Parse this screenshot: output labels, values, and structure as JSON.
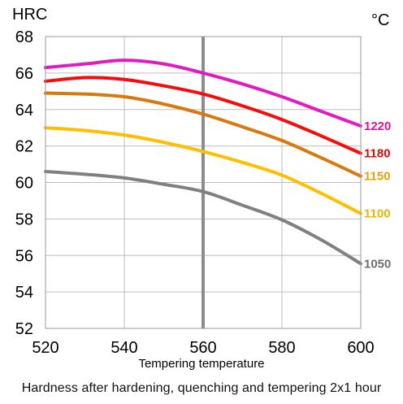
{
  "chart_data": {
    "type": "line",
    "ylabel": "HRC",
    "y2label": "°C",
    "xlabel": "Tempering temperature",
    "caption": "Hardness after hardening, quenching and tempering  2x1 hour",
    "xlim": [
      520,
      600
    ],
    "ylim": [
      52,
      68
    ],
    "x_ticks": [
      520,
      540,
      560,
      580,
      600
    ],
    "y_ticks": [
      52,
      54,
      56,
      58,
      60,
      62,
      64,
      66,
      68
    ],
    "grid": true,
    "vertical_marker_x": 560,
    "vertical_marker_color": "#8c8c8c",
    "series": [
      {
        "name": "1220",
        "color": "#e01bbf",
        "label_color": "#d9149d",
        "points": [
          [
            520,
            66.3
          ],
          [
            530,
            66.5
          ],
          [
            540,
            66.7
          ],
          [
            550,
            66.5
          ],
          [
            560,
            66.0
          ],
          [
            570,
            65.4
          ],
          [
            580,
            64.7
          ],
          [
            590,
            63.9
          ],
          [
            600,
            63.1
          ]
        ]
      },
      {
        "name": "1180",
        "color": "#f50c0c",
        "label_color": "#e00808",
        "points": [
          [
            520,
            65.55
          ],
          [
            530,
            65.75
          ],
          [
            540,
            65.65
          ],
          [
            550,
            65.3
          ],
          [
            560,
            64.85
          ],
          [
            570,
            64.2
          ],
          [
            580,
            63.45
          ],
          [
            590,
            62.55
          ],
          [
            600,
            61.6
          ]
        ]
      },
      {
        "name": "1150",
        "color": "#d9780f",
        "label_color": "#e8a10a",
        "points": [
          [
            520,
            64.9
          ],
          [
            530,
            64.85
          ],
          [
            540,
            64.7
          ],
          [
            550,
            64.3
          ],
          [
            560,
            63.75
          ],
          [
            570,
            63.05
          ],
          [
            580,
            62.3
          ],
          [
            590,
            61.35
          ],
          [
            600,
            60.35
          ]
        ]
      },
      {
        "name": "1100",
        "color": "#ffbf00",
        "label_color": "#f2b400",
        "points": [
          [
            520,
            63.0
          ],
          [
            530,
            62.85
          ],
          [
            540,
            62.6
          ],
          [
            550,
            62.2
          ],
          [
            560,
            61.7
          ],
          [
            570,
            61.1
          ],
          [
            580,
            60.4
          ],
          [
            590,
            59.4
          ],
          [
            600,
            58.3
          ]
        ]
      },
      {
        "name": "1050",
        "color": "#808080",
        "label_color": "#6f6f6f",
        "points": [
          [
            520,
            60.6
          ],
          [
            530,
            60.45
          ],
          [
            540,
            60.25
          ],
          [
            550,
            59.9
          ],
          [
            560,
            59.5
          ],
          [
            570,
            58.75
          ],
          [
            580,
            57.95
          ],
          [
            590,
            56.85
          ],
          [
            600,
            55.55
          ]
        ]
      }
    ]
  }
}
